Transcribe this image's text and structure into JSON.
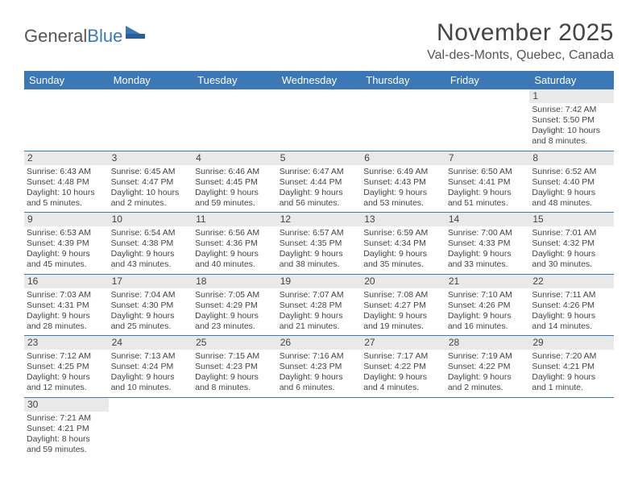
{
  "brand": {
    "part1": "General",
    "part2": "Blue"
  },
  "title": "November 2025",
  "location": "Val-des-Monts, Quebec, Canada",
  "colors": {
    "header_bg": "#3b78b5",
    "header_text": "#ffffff",
    "daynum_bg": "#e9e9e9",
    "text": "#444444",
    "row_border": "#3b78b5"
  },
  "weekdays": [
    "Sunday",
    "Monday",
    "Tuesday",
    "Wednesday",
    "Thursday",
    "Friday",
    "Saturday"
  ],
  "first_weekday_index": 6,
  "days": [
    {
      "n": 1,
      "sunrise": "7:42 AM",
      "sunset": "5:50 PM",
      "daylight": "10 hours and 8 minutes."
    },
    {
      "n": 2,
      "sunrise": "6:43 AM",
      "sunset": "4:48 PM",
      "daylight": "10 hours and 5 minutes."
    },
    {
      "n": 3,
      "sunrise": "6:45 AM",
      "sunset": "4:47 PM",
      "daylight": "10 hours and 2 minutes."
    },
    {
      "n": 4,
      "sunrise": "6:46 AM",
      "sunset": "4:45 PM",
      "daylight": "9 hours and 59 minutes."
    },
    {
      "n": 5,
      "sunrise": "6:47 AM",
      "sunset": "4:44 PM",
      "daylight": "9 hours and 56 minutes."
    },
    {
      "n": 6,
      "sunrise": "6:49 AM",
      "sunset": "4:43 PM",
      "daylight": "9 hours and 53 minutes."
    },
    {
      "n": 7,
      "sunrise": "6:50 AM",
      "sunset": "4:41 PM",
      "daylight": "9 hours and 51 minutes."
    },
    {
      "n": 8,
      "sunrise": "6:52 AM",
      "sunset": "4:40 PM",
      "daylight": "9 hours and 48 minutes."
    },
    {
      "n": 9,
      "sunrise": "6:53 AM",
      "sunset": "4:39 PM",
      "daylight": "9 hours and 45 minutes."
    },
    {
      "n": 10,
      "sunrise": "6:54 AM",
      "sunset": "4:38 PM",
      "daylight": "9 hours and 43 minutes."
    },
    {
      "n": 11,
      "sunrise": "6:56 AM",
      "sunset": "4:36 PM",
      "daylight": "9 hours and 40 minutes."
    },
    {
      "n": 12,
      "sunrise": "6:57 AM",
      "sunset": "4:35 PM",
      "daylight": "9 hours and 38 minutes."
    },
    {
      "n": 13,
      "sunrise": "6:59 AM",
      "sunset": "4:34 PM",
      "daylight": "9 hours and 35 minutes."
    },
    {
      "n": 14,
      "sunrise": "7:00 AM",
      "sunset": "4:33 PM",
      "daylight": "9 hours and 33 minutes."
    },
    {
      "n": 15,
      "sunrise": "7:01 AM",
      "sunset": "4:32 PM",
      "daylight": "9 hours and 30 minutes."
    },
    {
      "n": 16,
      "sunrise": "7:03 AM",
      "sunset": "4:31 PM",
      "daylight": "9 hours and 28 minutes."
    },
    {
      "n": 17,
      "sunrise": "7:04 AM",
      "sunset": "4:30 PM",
      "daylight": "9 hours and 25 minutes."
    },
    {
      "n": 18,
      "sunrise": "7:05 AM",
      "sunset": "4:29 PM",
      "daylight": "9 hours and 23 minutes."
    },
    {
      "n": 19,
      "sunrise": "7:07 AM",
      "sunset": "4:28 PM",
      "daylight": "9 hours and 21 minutes."
    },
    {
      "n": 20,
      "sunrise": "7:08 AM",
      "sunset": "4:27 PM",
      "daylight": "9 hours and 19 minutes."
    },
    {
      "n": 21,
      "sunrise": "7:10 AM",
      "sunset": "4:26 PM",
      "daylight": "9 hours and 16 minutes."
    },
    {
      "n": 22,
      "sunrise": "7:11 AM",
      "sunset": "4:26 PM",
      "daylight": "9 hours and 14 minutes."
    },
    {
      "n": 23,
      "sunrise": "7:12 AM",
      "sunset": "4:25 PM",
      "daylight": "9 hours and 12 minutes."
    },
    {
      "n": 24,
      "sunrise": "7:13 AM",
      "sunset": "4:24 PM",
      "daylight": "9 hours and 10 minutes."
    },
    {
      "n": 25,
      "sunrise": "7:15 AM",
      "sunset": "4:23 PM",
      "daylight": "9 hours and 8 minutes."
    },
    {
      "n": 26,
      "sunrise": "7:16 AM",
      "sunset": "4:23 PM",
      "daylight": "9 hours and 6 minutes."
    },
    {
      "n": 27,
      "sunrise": "7:17 AM",
      "sunset": "4:22 PM",
      "daylight": "9 hours and 4 minutes."
    },
    {
      "n": 28,
      "sunrise": "7:19 AM",
      "sunset": "4:22 PM",
      "daylight": "9 hours and 2 minutes."
    },
    {
      "n": 29,
      "sunrise": "7:20 AM",
      "sunset": "4:21 PM",
      "daylight": "9 hours and 1 minute."
    },
    {
      "n": 30,
      "sunrise": "7:21 AM",
      "sunset": "4:21 PM",
      "daylight": "8 hours and 59 minutes."
    }
  ],
  "labels": {
    "sunrise": "Sunrise:",
    "sunset": "Sunset:",
    "daylight": "Daylight:"
  }
}
